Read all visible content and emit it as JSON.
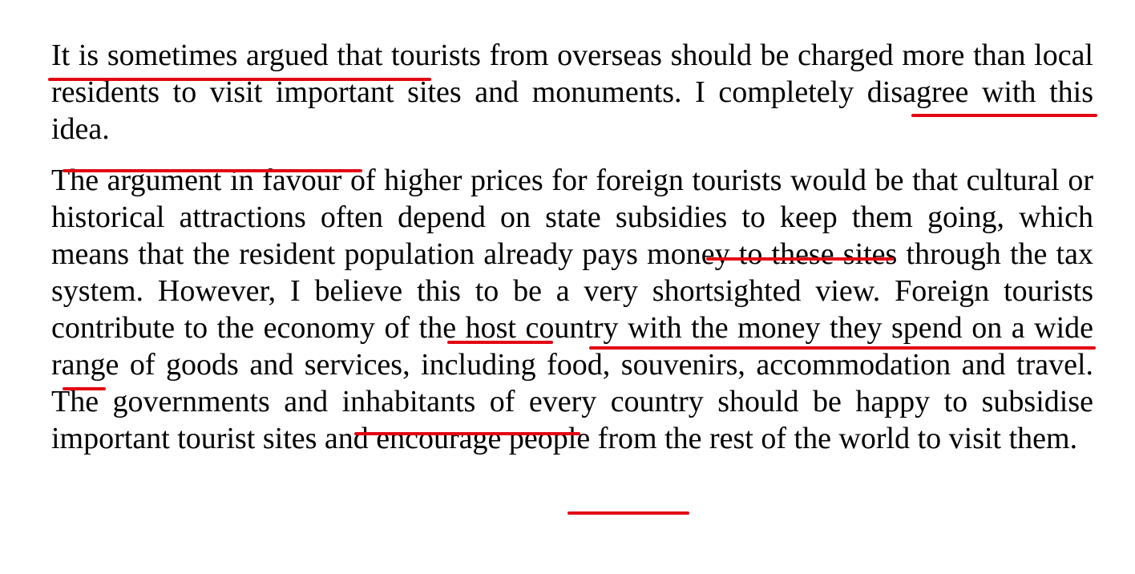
{
  "accent_color": "#e30613",
  "paragraphs": [
    {
      "segments": [
        "It is sometimes argued that",
        " tourists from overseas should be charged more than local residents to visit important sites and monuments. ",
        "I completely disagree with this idea."
      ]
    },
    {
      "segments": [
        "The argument in favour of higher prices for foreign tourists would be that cultural or historical attractions often depend on ",
        "state subsidies",
        " to keep them going, which means that the resident population already pays money to these sites through the tax system. ",
        "However",
        ", ",
        "I believe this to be a very shortsighted view",
        ". Foreign tourists contribute to the economy of the host country with the money they spend on ",
        "a wide range of",
        " goods and services, including food, souvenirs, accommodation and travel. The governments and inhabitants of every country should be happy to ",
        "subsidise",
        " important tourist sites and encourage people from the rest of the world to visit them."
      ]
    }
  ]
}
